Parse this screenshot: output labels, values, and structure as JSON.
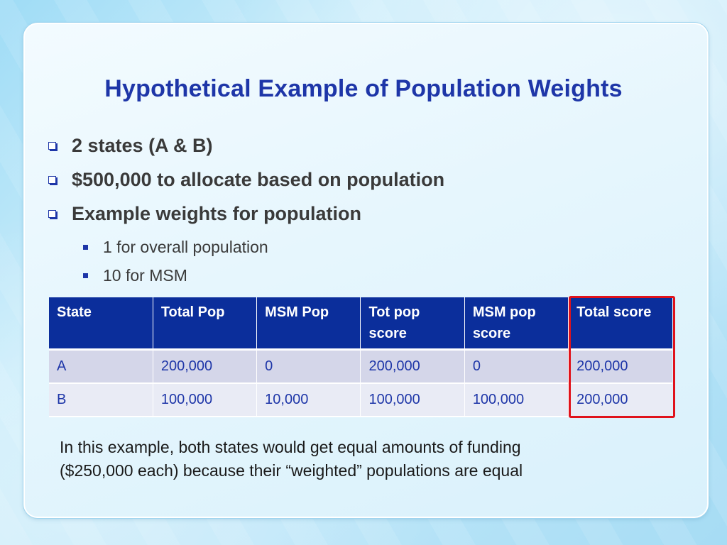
{
  "title": "Hypothetical Example of Population Weights",
  "bullets": [
    "2 states (A & B)",
    "$500,000 to allocate based on population",
    "Example weights for population"
  ],
  "subbullets": [
    "1 for overall population",
    "10 for MSM"
  ],
  "table": {
    "headers": [
      "State",
      "Total Pop",
      "MSM Pop",
      "Tot pop score",
      "MSM pop score",
      "Total score"
    ],
    "rows": [
      [
        "A",
        "200,000",
        "0",
        "200,000",
        "0",
        "200,000"
      ],
      [
        "B",
        "100,000",
        "10,000",
        "100,000",
        "100,000",
        "200,000"
      ]
    ]
  },
  "note": {
    "line1": "In this example,  both states would get equal amounts of funding",
    "line2": "($250,000 each) because their “weighted” populations are equal"
  },
  "colors": {
    "title": "#1e36a8",
    "header_bg": "#0b2e9b",
    "highlight_border": "#e0121b",
    "cell_text": "#1e36a8"
  }
}
